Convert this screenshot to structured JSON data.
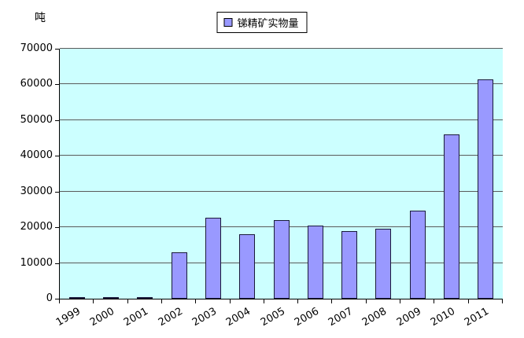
{
  "unit_label": "吨",
  "legend": {
    "label": "锑精矿实物量",
    "swatch_color": "#9999ff"
  },
  "chart_data": {
    "type": "bar",
    "title": "",
    "series_name": "锑精矿实物量",
    "categories": [
      "1999",
      "2000",
      "2001",
      "2002",
      "2003",
      "2004",
      "2005",
      "2006",
      "2007",
      "2008",
      "2009",
      "2010",
      "2011"
    ],
    "values": [
      300,
      200,
      400,
      13000,
      22700,
      18000,
      22000,
      20500,
      19000,
      19500,
      24700,
      46000,
      61500
    ],
    "xlabel": "",
    "ylabel": "吨",
    "ylim": [
      0,
      70000
    ],
    "ytick_step": 10000,
    "grid": "horizontal",
    "legend_position": "top-center",
    "colors": {
      "bar_fill": "#9999ff",
      "bar_border": "#1a1a3a",
      "plot_bg": "#ccffff",
      "grid": "#5a5a5a"
    }
  }
}
